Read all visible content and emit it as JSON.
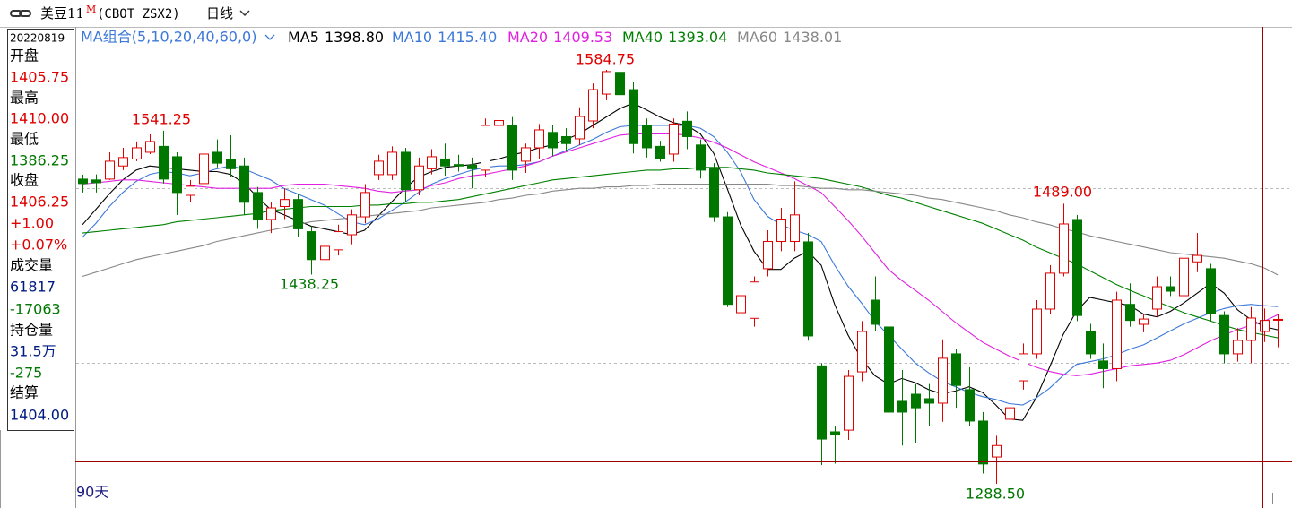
{
  "header": {
    "title": "美豆11",
    "title_mark": "M",
    "code": "(CBOT ZSX2)",
    "period": "日线",
    "ma_group": "MA组合(5,10,20,40,60,0)",
    "span": "90天"
  },
  "info_panel": [
    "20220819",
    "开盘",
    "1405.75",
    "最高",
    "1410.00",
    "最低",
    "1386.25",
    "收盘",
    "1406.25",
    "+1.00",
    "+0.07%",
    "成交量",
    "61817",
    "-17063",
    "持仓量",
    "31.5万",
    "-275",
    "结算",
    "1404.00"
  ],
  "chart_data": {
    "type": "candlestick",
    "ylim": [
      1271.3,
      1615.5
    ],
    "grid_lines": [
      1375,
      1500
    ],
    "up_color": "#e00000",
    "down_color": "#007800",
    "candles": {
      "open": [
        1506.6,
        1506,
        1506.6,
        1516,
        1521,
        1525.8,
        1530,
        1522.6,
        1495,
        1503.4,
        1525.8,
        1520.6,
        1516,
        1497,
        1477.7,
        1487,
        1492,
        1469,
        1449,
        1456,
        1466.8,
        1479.6,
        1509.8,
        1509.8,
        1525.8,
        1499,
        1514,
        1521,
        1517,
        1516.6,
        1513,
        1545,
        1545,
        1519.4,
        1529,
        1540,
        1537,
        1535.4,
        1548.2,
        1567.4,
        1583,
        1570.6,
        1545,
        1530,
        1524.5,
        1548,
        1531,
        1514,
        1479.6,
        1411,
        1407,
        1442.5,
        1462,
        1462,
        1461.7,
        1373,
        1325.8,
        1327,
        1368.7,
        1420,
        1400.8,
        1347.6,
        1352.7,
        1349.5,
        1346.3,
        1381.6,
        1356,
        1333.5,
        1307.8,
        1334.8,
        1362.3,
        1381.6,
        1413.6,
        1439.3,
        1477.7,
        1397.6,
        1376.5,
        1371,
        1417,
        1402.7,
        1413.6,
        1429.6,
        1423.2,
        1447.4,
        1442.5,
        1409,
        1381.6,
        1391.2,
        1397.6,
        1405.75
      ],
      "high": [
        1509.8,
        1510,
        1525.8,
        1529,
        1533.5,
        1538.6,
        1541.25,
        1525.8,
        1506,
        1531,
        1535,
        1538,
        1522,
        1501,
        1490,
        1500,
        1496,
        1473,
        1462,
        1474,
        1485,
        1503,
        1524,
        1530,
        1529,
        1522,
        1528,
        1532,
        1524,
        1522,
        1550,
        1556,
        1551,
        1532,
        1546,
        1545,
        1543,
        1558,
        1575,
        1584.75,
        1584,
        1576,
        1550,
        1534,
        1550,
        1555,
        1535,
        1518,
        1483,
        1429,
        1437,
        1470,
        1486,
        1505,
        1468,
        1375,
        1330,
        1370,
        1405,
        1437,
        1410,
        1370,
        1360,
        1360,
        1392,
        1385,
        1372,
        1340,
        1323,
        1350,
        1389,
        1420,
        1445,
        1489,
        1481,
        1403,
        1389,
        1426,
        1432,
        1410,
        1437,
        1437,
        1454,
        1468,
        1446,
        1412,
        1400,
        1415,
        1414,
        1410
      ],
      "low": [
        1497,
        1497,
        1506,
        1513,
        1519.4,
        1524.5,
        1503.4,
        1481,
        1490,
        1497,
        1515,
        1508,
        1481,
        1471,
        1468,
        1478,
        1465,
        1438.25,
        1442,
        1452,
        1460,
        1475,
        1506,
        1506,
        1490,
        1495,
        1510,
        1509,
        1512,
        1500,
        1508,
        1537,
        1506,
        1511,
        1521,
        1523,
        1527,
        1531,
        1543,
        1563,
        1561,
        1525,
        1522,
        1519,
        1519,
        1528,
        1507,
        1476,
        1415,
        1401,
        1401,
        1437,
        1455,
        1455,
        1391,
        1302,
        1303,
        1320,
        1362,
        1398,
        1337,
        1316,
        1318,
        1330,
        1333,
        1343,
        1330,
        1296,
        1288.5,
        1314,
        1356,
        1378,
        1410,
        1437,
        1405,
        1378,
        1357,
        1362,
        1401,
        1397,
        1408,
        1423,
        1416,
        1440,
        1405,
        1375,
        1376,
        1375,
        1390,
        1386.25
      ],
      "close": [
        1503.4,
        1504,
        1519.4,
        1522,
        1529,
        1533.5,
        1506.6,
        1497,
        1501.5,
        1524.5,
        1518,
        1514,
        1490,
        1477.7,
        1486,
        1492,
        1471,
        1449,
        1458.5,
        1469,
        1481,
        1497,
        1519.4,
        1525.8,
        1499,
        1516,
        1522.6,
        1516,
        1516,
        1514,
        1545,
        1548.5,
        1513,
        1529,
        1541.8,
        1529,
        1532,
        1551.4,
        1570.6,
        1583.5,
        1567,
        1532,
        1529,
        1521,
        1546,
        1537,
        1513,
        1479.6,
        1417,
        1423.2,
        1433,
        1462,
        1478,
        1481,
        1394.4,
        1320.6,
        1324,
        1365.5,
        1397.6,
        1402.7,
        1339.9,
        1339.9,
        1343,
        1346.3,
        1378.4,
        1359,
        1333.5,
        1302.8,
        1316,
        1343,
        1381.6,
        1413.6,
        1439.3,
        1474.5,
        1409,
        1381.6,
        1371,
        1420,
        1405.5,
        1406.5,
        1429.6,
        1426.4,
        1450,
        1452,
        1410.4,
        1381.6,
        1391.2,
        1407.2,
        1405.5,
        1406.25
      ]
    },
    "ma_series": [
      {
        "name": "MA5",
        "color": "#000000",
        "last_label": "1398.80",
        "values": [
          1474,
          1485,
          1496,
          1506,
          1513,
          1516,
          1515,
          1514,
          1513,
          1512,
          1512,
          1510,
          1504,
          1494,
          1485,
          1481,
          1477,
          1473,
          1471,
          1469,
          1467,
          1470,
          1480,
          1490,
          1500,
          1508,
          1512,
          1515,
          1516,
          1517,
          1519,
          1521,
          1524,
          1526,
          1529,
          1531,
          1535,
          1539,
          1545,
          1551,
          1557,
          1561,
          1556,
          1551,
          1547,
          1545,
          1539,
          1525,
          1500,
          1474,
          1455,
          1442,
          1442,
          1450,
          1455,
          1445,
          1417,
          1395,
          1378,
          1366,
          1360,
          1364,
          1361,
          1356,
          1353,
          1355,
          1358,
          1354,
          1345,
          1335,
          1334,
          1350,
          1372,
          1395,
          1412,
          1422,
          1420,
          1418,
          1416,
          1410,
          1408,
          1412,
          1418,
          1425,
          1432,
          1425,
          1413,
          1406,
          1401,
          1398.8
        ]
      },
      {
        "name": "MA10",
        "color": "#3c78d8",
        "last_label": "1415.40",
        "values": [
          1465,
          1475,
          1487,
          1497,
          1505,
          1510,
          1512,
          1511,
          1509,
          1511,
          1514,
          1516,
          1514,
          1510,
          1506,
          1500,
          1496,
          1492,
          1488,
          1482,
          1476,
          1474,
          1478,
          1484,
          1490,
          1497,
          1503,
          1507,
          1510,
          1513,
          1515,
          1516,
          1516,
          1517,
          1519,
          1523,
          1527,
          1531,
          1535,
          1540,
          1544,
          1545,
          1545,
          1545,
          1545,
          1545,
          1543,
          1537,
          1526,
          1512,
          1492,
          1480,
          1474,
          1470,
          1467,
          1462,
          1445,
          1430,
          1418,
          1405,
          1395,
          1385,
          1375,
          1368,
          1362,
          1358,
          1354,
          1351,
          1349,
          1346,
          1345,
          1350,
          1357,
          1366,
          1374,
          1376,
          1378,
          1381,
          1385,
          1388,
          1393,
          1398,
          1403,
          1407,
          1411,
          1414,
          1416,
          1417,
          1416,
          1415.4
        ]
      },
      {
        "name": "MA20",
        "color": "#e020e0",
        "last_label": "1409.53",
        "values": [
          1503,
          1504,
          1505,
          1506,
          1506,
          1505,
          1504,
          1503,
          1502,
          1501,
          1500,
          1500,
          1500,
          1500,
          1500,
          1502,
          1503,
          1503,
          1503,
          1502,
          1501,
          1500,
          1498,
          1497,
          1498,
          1499,
          1502,
          1504,
          1507,
          1509,
          1510,
          1512,
          1514,
          1516,
          1519,
          1523,
          1526,
          1529,
          1532,
          1535,
          1538,
          1539,
          1539,
          1539,
          1539,
          1538,
          1536,
          1533,
          1529,
          1524,
          1519,
          1515,
          1511,
          1507,
          1502,
          1497,
          1487,
          1477,
          1466,
          1454,
          1442,
          1434,
          1427,
          1420,
          1412,
          1404,
          1397,
          1390,
          1385,
          1380,
          1376,
          1372,
          1369,
          1367,
          1366,
          1367,
          1369,
          1371,
          1373,
          1374,
          1375,
          1377,
          1381,
          1386,
          1391,
          1395,
          1399,
          1402,
          1405,
          1409.53
        ]
      },
      {
        "name": "MA40",
        "color": "#008000",
        "last_label": "1393.04",
        "values": [
          1468,
          1469,
          1470,
          1471,
          1472,
          1473,
          1474,
          1476,
          1477,
          1478,
          1479,
          1480,
          1481,
          1482,
          1484,
          1485,
          1486,
          1487,
          1487,
          1487,
          1487,
          1488,
          1488,
          1489,
          1489,
          1490,
          1490,
          1491,
          1492,
          1494,
          1496,
          1498,
          1500,
          1502,
          1504,
          1506,
          1507,
          1508,
          1509,
          1510,
          1511,
          1512,
          1513,
          1513,
          1514,
          1514,
          1515,
          1515,
          1515,
          1514,
          1513,
          1511,
          1510,
          1509,
          1508,
          1507,
          1505,
          1503,
          1501,
          1498,
          1495,
          1493,
          1490,
          1487,
          1484,
          1481,
          1478,
          1475,
          1471,
          1467,
          1463,
          1458,
          1454,
          1450,
          1446,
          1441,
          1436,
          1431,
          1427,
          1423,
          1419,
          1415,
          1411,
          1408,
          1405,
          1402,
          1399,
          1397,
          1395,
          1393.04
        ]
      },
      {
        "name": "MA60",
        "color": "#888888",
        "last_label": "1438.01",
        "values": [
          1437,
          1440,
          1443,
          1446,
          1449,
          1451,
          1453,
          1455,
          1457,
          1459,
          1462,
          1464,
          1466,
          1468,
          1470,
          1472,
          1474,
          1476,
          1477,
          1478,
          1479,
          1480,
          1481,
          1482,
          1483,
          1484,
          1486,
          1487,
          1488,
          1489,
          1490,
          1492,
          1493,
          1495,
          1496,
          1498,
          1499,
          1500,
          1500,
          1501,
          1501,
          1502,
          1502,
          1503,
          1503,
          1503,
          1503,
          1503,
          1503,
          1503,
          1503,
          1503,
          1502,
          1502,
          1501,
          1500,
          1500,
          1499,
          1499,
          1498,
          1497,
          1496,
          1495,
          1493,
          1492,
          1490,
          1488,
          1486,
          1484,
          1481,
          1479,
          1476,
          1474,
          1471,
          1469,
          1466,
          1464,
          1462,
          1460,
          1458,
          1456,
          1454,
          1453,
          1452,
          1451,
          1450,
          1448,
          1446,
          1443,
          1438.01
        ]
      }
    ],
    "annotations": [
      "1584.75",
      "1541.25",
      "1489.00",
      "1438.25",
      "1288.50"
    ]
  }
}
